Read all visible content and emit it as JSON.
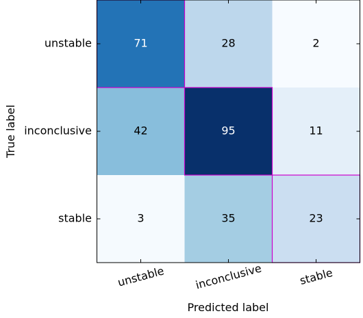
{
  "chart_data": {
    "type": "heatmap",
    "xlabel": "Predicted label",
    "ylabel": "True label",
    "x_categories": [
      "unstable",
      "inconclusive",
      "stable"
    ],
    "y_categories": [
      "unstable",
      "inconclusive",
      "stable"
    ],
    "values": [
      [
        71,
        28,
        2
      ],
      [
        42,
        95,
        11
      ],
      [
        3,
        35,
        23
      ]
    ],
    "colormap": "Blues",
    "value_range": [
      2,
      95
    ],
    "diagonal_highlight_color": "#cc00cc",
    "cell_text_color_light": "#ffffff",
    "cell_text_color_dark": "#000000"
  }
}
